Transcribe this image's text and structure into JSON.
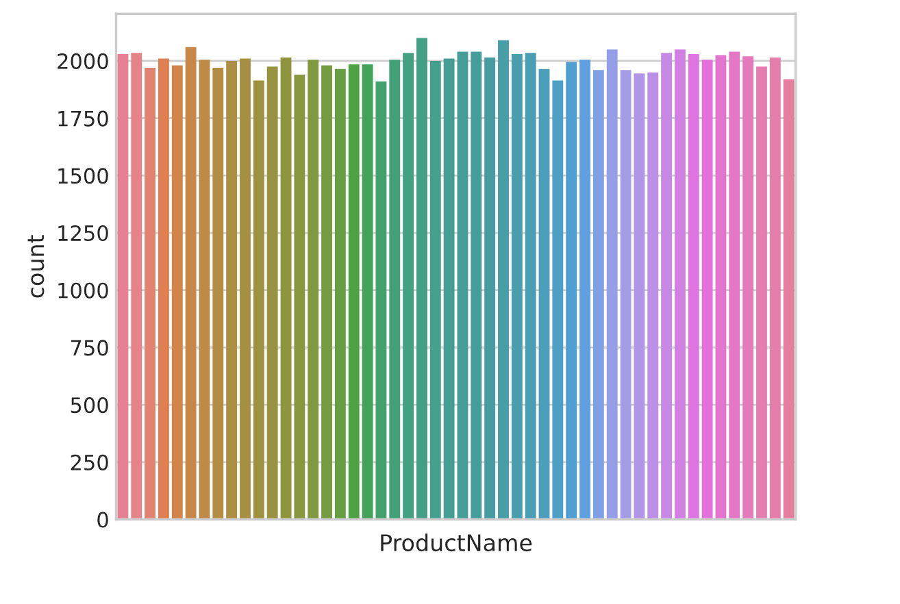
{
  "chart_data": {
    "type": "bar",
    "xlabel": "ProductName",
    "ylabel": "count",
    "categories": [
      null,
      null,
      null,
      null,
      null,
      null,
      null,
      null,
      null,
      null,
      null,
      null,
      null,
      null,
      null,
      null,
      null,
      null,
      null,
      null,
      null,
      null,
      null,
      null,
      null,
      null,
      null,
      null,
      null,
      null,
      null,
      null,
      null,
      null,
      null,
      null,
      null,
      null,
      null,
      null,
      null,
      null,
      null,
      null,
      null,
      null,
      null,
      null,
      null,
      null
    ],
    "values": [
      2030,
      2035,
      1970,
      2010,
      1980,
      2060,
      2005,
      1970,
      2000,
      2010,
      1915,
      1975,
      2015,
      1940,
      2005,
      1980,
      1965,
      1985,
      1985,
      1910,
      2005,
      2035,
      2100,
      2000,
      2010,
      2040,
      2040,
      2015,
      2090,
      2030,
      2035,
      1965,
      1915,
      1995,
      2005,
      1960,
      2050,
      1960,
      1945,
      1950,
      2035,
      2050,
      2030,
      2005,
      2025,
      2040,
      2020,
      1975,
      2015,
      1920
    ],
    "colors": [
      "#e68193",
      "#e68386",
      "#e48272",
      "#e07f50",
      "#d28449",
      "#c68847",
      "#bd8b46",
      "#b48d44",
      "#ad8f43",
      "#a59042",
      "#9e9241",
      "#979340",
      "#8f943f",
      "#889740",
      "#809940",
      "#759c40",
      "#669f41",
      "#4ea241",
      "#42a25a",
      "#42a16d",
      "#43a178",
      "#43a081",
      "#449f88",
      "#449f8d",
      "#449e93",
      "#459e97",
      "#459d9c",
      "#469da1",
      "#479ea7",
      "#489ead",
      "#4a9eb4",
      "#4b9fbb",
      "#4e9fc5",
      "#509fd1",
      "#5fa0df",
      "#7fa0e4",
      "#959fe7",
      "#a59ce8",
      "#b196e7",
      "#bc90e6",
      "#c789e5",
      "#d280e4",
      "#dd74e2",
      "#e271d9",
      "#e375ce",
      "#e377c5",
      "#e47abb",
      "#e57cb2",
      "#e57ea9",
      "#e57fa0"
    ],
    "ylim": [
      0,
      2205
    ],
    "yticks": [
      0,
      250,
      500,
      750,
      1000,
      1250,
      1500,
      1750,
      2000
    ],
    "grid": "y"
  }
}
